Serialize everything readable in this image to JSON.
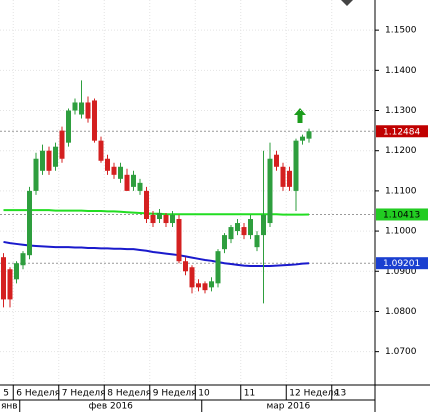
{
  "chart_data": {
    "type": "candlestick",
    "up_color": "#2e9e3e",
    "down_color": "#d42020",
    "grid": true,
    "ylim": [
      1.0617,
      1.1575
    ],
    "yticks": [
      {
        "value": 1.15,
        "label": "1.1500"
      },
      {
        "value": 1.14,
        "label": "1.1400"
      },
      {
        "value": 1.13,
        "label": "1.1300"
      },
      {
        "value": 1.12,
        "label": "1.1200"
      },
      {
        "value": 1.11,
        "label": "1.1100"
      },
      {
        "value": 1.1,
        "label": "1.1000"
      },
      {
        "value": 1.09,
        "label": "1.0900"
      },
      {
        "value": 1.08,
        "label": "1.0800"
      },
      {
        "value": 1.07,
        "label": "1.0700"
      }
    ],
    "categories": [
      "5",
      null,
      "6 Неделя",
      null,
      null,
      null,
      null,
      null,
      null,
      "7 Неделя",
      null,
      null,
      null,
      null,
      null,
      null,
      "8 Неделя",
      null,
      null,
      null,
      null,
      null,
      null,
      "9 Неделя",
      null,
      null,
      null,
      null,
      null,
      null,
      "10",
      null,
      null,
      null,
      null,
      null,
      null,
      "11",
      null,
      null,
      null,
      null,
      null,
      null,
      "12 Неделя",
      null,
      null,
      null,
      null,
      null,
      null,
      "13"
    ],
    "months": [
      "янв",
      null,
      null,
      "фев 2016",
      null,
      null,
      null,
      null,
      null,
      null,
      null,
      null,
      null,
      null,
      null,
      null,
      null,
      null,
      null,
      null,
      null,
      null,
      null,
      null,
      null,
      null,
      null,
      null,
      null,
      null,
      null,
      "мар 2016",
      null,
      null,
      null,
      null,
      null,
      null,
      null,
      null,
      null,
      null,
      null,
      null,
      null,
      null,
      null,
      null,
      null,
      null,
      null,
      null
    ],
    "open": [
      1.0935,
      1.0905,
      1.088,
      1.0915,
      1.094,
      1.11,
      1.115,
      1.12,
      1.116,
      1.125,
      1.122,
      1.13,
      1.129,
      1.132,
      1.1325,
      1.1225,
      1.118,
      1.116,
      1.113,
      1.114,
      1.111,
      1.11,
      1.11,
      1.104,
      1.103,
      1.104,
      1.102,
      1.103,
      1.0925,
      1.091,
      1.087,
      1.087,
      1.086,
      1.087,
      1.0955,
      1.098,
      1.1,
      1.101,
      1.099,
      1.096,
      1.099,
      1.102,
      1.119,
      1.116,
      1.115,
      1.11,
      1.1225,
      1.123,
      null,
      null,
      null,
      null
    ],
    "high": [
      1.0945,
      1.091,
      1.0925,
      1.095,
      1.111,
      1.1195,
      1.1215,
      1.121,
      1.122,
      1.126,
      1.1305,
      1.133,
      1.1375,
      1.1335,
      1.133,
      1.1235,
      1.119,
      1.117,
      1.117,
      1.1155,
      1.115,
      1.113,
      1.111,
      1.105,
      1.1055,
      1.1045,
      1.105,
      1.104,
      1.0935,
      1.0915,
      1.088,
      1.0875,
      1.0885,
      1.0955,
      1.0995,
      1.1015,
      1.103,
      1.102,
      1.104,
      1.1,
      1.12,
      1.122,
      1.12,
      1.117,
      1.116,
      1.123,
      1.124,
      1.1255,
      null,
      null,
      null,
      null
    ],
    "low": [
      1.081,
      1.081,
      1.087,
      1.0905,
      1.093,
      1.109,
      1.114,
      1.114,
      1.115,
      1.117,
      1.121,
      1.129,
      1.128,
      1.127,
      1.122,
      1.117,
      1.114,
      1.113,
      1.112,
      1.11,
      1.11,
      1.109,
      1.102,
      1.101,
      1.102,
      1.101,
      1.101,
      1.092,
      1.089,
      1.0845,
      1.085,
      1.0845,
      1.085,
      1.086,
      1.0945,
      1.097,
      1.099,
      1.098,
      1.098,
      1.095,
      1.082,
      1.101,
      1.115,
      1.11,
      1.11,
      1.105,
      1.1215,
      1.122,
      null,
      null,
      null,
      null
    ],
    "close": [
      1.083,
      1.083,
      1.092,
      1.0945,
      1.11,
      1.118,
      1.12,
      1.115,
      1.121,
      1.118,
      1.13,
      1.132,
      1.132,
      1.128,
      1.1225,
      1.1175,
      1.115,
      1.114,
      1.116,
      1.11,
      1.114,
      1.112,
      1.103,
      1.102,
      1.1045,
      1.102,
      1.104,
      1.0925,
      1.09,
      1.086,
      1.086,
      1.0853,
      1.0875,
      1.095,
      1.099,
      1.101,
      1.102,
      1.099,
      1.103,
      1.099,
      1.104,
      1.118,
      1.116,
      1.111,
      1.111,
      1.1225,
      1.1235,
      1.12484,
      null,
      null,
      null,
      null
    ],
    "series": [
      {
        "color": "#22dd22",
        "values": [
          1.1052,
          1.1052,
          1.1052,
          1.1052,
          1.1052,
          1.1052,
          1.1052,
          1.1052,
          1.1051,
          1.1051,
          1.1051,
          1.1051,
          1.1051,
          1.105,
          1.105,
          1.105,
          1.1049,
          1.1049,
          1.1048,
          1.1047,
          1.1046,
          1.1045,
          1.1044,
          1.1043,
          1.1043,
          1.1042,
          1.1042,
          1.1042,
          1.1042,
          1.1042,
          1.1042,
          1.1042,
          1.1042,
          1.1042,
          1.1042,
          1.1042,
          1.1042,
          1.1042,
          1.1042,
          1.1042,
          1.1042,
          1.1042,
          1.1042,
          1.1041,
          1.1041,
          1.1041,
          1.1041,
          1.10413,
          null,
          null,
          null,
          null
        ]
      },
      {
        "color": "#1a1acc",
        "values": [
          1.0973,
          1.097,
          1.0968,
          1.0966,
          1.0964,
          1.0963,
          1.0962,
          1.0961,
          1.096,
          1.096,
          1.096,
          1.0959,
          1.0959,
          1.0958,
          1.0958,
          1.0957,
          1.0957,
          1.0956,
          1.0956,
          1.0955,
          1.0955,
          1.0953,
          1.0951,
          1.0948,
          1.0946,
          1.0944,
          1.0942,
          1.094,
          1.0937,
          1.0934,
          1.0931,
          1.0928,
          1.0926,
          1.0923,
          1.092,
          1.0918,
          1.0916,
          1.0914,
          1.0913,
          1.0913,
          1.0913,
          1.0913,
          1.0914,
          1.0915,
          1.0916,
          1.0917,
          1.0919,
          1.09201,
          null,
          null,
          null,
          null
        ]
      }
    ],
    "levels": [
      {
        "value": 1.12484,
        "color": "#c00000",
        "text_color": "#ffffff"
      },
      {
        "value": 1.10413,
        "color": "#22cc22",
        "text_color": "#000000"
      },
      {
        "value": 1.09201,
        "color": "#1a3fd0",
        "text_color": "#ffffff"
      }
    ]
  }
}
